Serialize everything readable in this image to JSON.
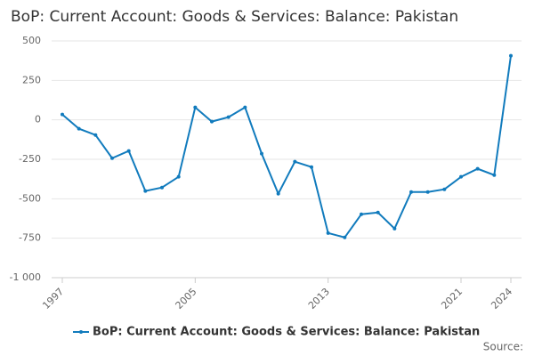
{
  "chart_data": {
    "type": "line",
    "title": "BoP: Current Account: Goods & Services: Balance: Pakistan",
    "x": [
      1997,
      1998,
      1999,
      2000,
      2001,
      2002,
      2003,
      2004,
      2005,
      2006,
      2007,
      2008,
      2009,
      2010,
      2011,
      2012,
      2013,
      2014,
      2015,
      2016,
      2017,
      2018,
      2019,
      2020,
      2021,
      2022,
      2023,
      2024
    ],
    "series": [
      {
        "name": "BoP: Current Account: Goods & Services: Balance: Pakistan",
        "color": "#117bbd",
        "values": [
          34,
          -56,
          -96,
          -243,
          -197,
          -451,
          -429,
          -361,
          79,
          -11,
          17,
          79,
          -214,
          -468,
          -265,
          -299,
          -717,
          -745,
          -598,
          -587,
          -689,
          -457,
          -457,
          -440,
          -361,
          -310,
          -350,
          406
        ]
      }
    ],
    "xlim": [
      1997,
      2024
    ],
    "xticks": [
      1997,
      2005,
      2013,
      2021,
      2024
    ],
    "ylim": [
      -1000,
      500
    ],
    "yticks": [
      {
        "value": -1000,
        "label": "-1 000"
      },
      -750,
      -500,
      -250,
      0,
      250,
      500
    ],
    "grid": true,
    "legend": "bottom",
    "source": "Source:"
  }
}
